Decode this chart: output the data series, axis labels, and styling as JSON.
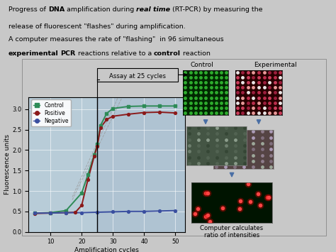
{
  "bg_color": "#c8c8c8",
  "chart_bg": "#b8ccd8",
  "chart_bg_right": "#aabecf",
  "xlabel": "Amplification cycles",
  "ylabel": "Fluorescence units",
  "xlim": [
    3,
    53
  ],
  "ylim": [
    0,
    3.3
  ],
  "xticks": [
    10,
    20,
    30,
    40,
    50
  ],
  "yticks": [
    0,
    0.5,
    1.0,
    1.5,
    2.0,
    2.5,
    3.0
  ],
  "control_x": [
    5,
    10,
    15,
    20,
    22,
    24,
    25,
    26,
    28,
    30,
    35,
    40,
    45,
    50
  ],
  "control_y": [
    0.46,
    0.47,
    0.52,
    0.95,
    1.4,
    1.88,
    2.15,
    2.6,
    2.9,
    3.02,
    3.07,
    3.08,
    3.08,
    3.08
  ],
  "positive_x": [
    5,
    10,
    15,
    18,
    20,
    22,
    24,
    25,
    26,
    28,
    30,
    35,
    40,
    45,
    50
  ],
  "positive_y": [
    0.45,
    0.46,
    0.47,
    0.48,
    0.65,
    1.28,
    1.85,
    2.1,
    2.55,
    2.75,
    2.83,
    2.88,
    2.92,
    2.93,
    2.91
  ],
  "negative_x": [
    5,
    10,
    15,
    20,
    25,
    30,
    35,
    40,
    45,
    50
  ],
  "negative_y": [
    0.46,
    0.46,
    0.47,
    0.47,
    0.48,
    0.49,
    0.5,
    0.5,
    0.51,
    0.52
  ],
  "control_color": "#2e8b57",
  "positive_color": "#8b1a1a",
  "negative_color": "#3a4fa0",
  "legend_labels": [
    "Control",
    "Positive",
    "Negative"
  ],
  "assay_x": 25,
  "assay_label": "Assay at 25 cycles",
  "dashed_line_color": "#999999",
  "arrow_color": "#4a6fa5",
  "ctrl_img_color": "#002800",
  "ctrl_dot_color": "#33bb33",
  "exp_img_color": "#280000",
  "merge_bg": "#445544",
  "merge_bg2": "#554444",
  "final_bg": "#001400",
  "final_dot_color": "#ff2222"
}
